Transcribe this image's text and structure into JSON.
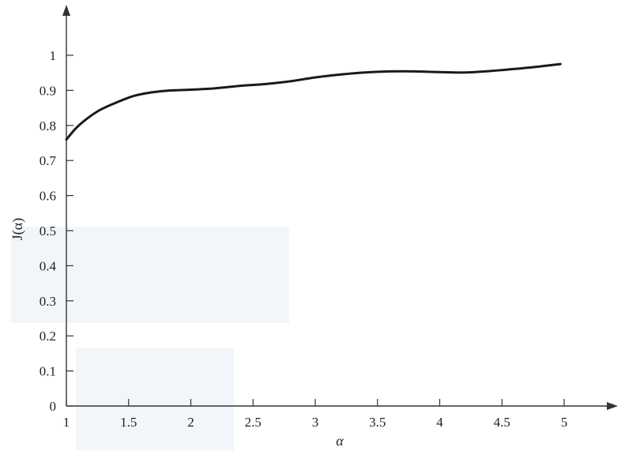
{
  "chart_data": {
    "type": "line",
    "title": "",
    "xlabel": "α",
    "ylabel": "J(α)",
    "xlim": [
      1,
      5.4
    ],
    "ylim": [
      0,
      1.13
    ],
    "x_ticks": [
      1,
      1.5,
      2,
      2.5,
      3,
      3.5,
      4,
      4.5,
      5
    ],
    "x_tick_labels": [
      "1",
      "1.5",
      "2",
      "2.5",
      "3",
      "3.5",
      "4",
      "4.5",
      "5"
    ],
    "y_ticks": [
      0,
      0.1,
      0.2,
      0.3,
      0.4,
      0.5,
      0.6,
      0.7,
      0.8,
      0.9,
      1
    ],
    "y_tick_labels": [
      "0",
      "0.1",
      "0.2",
      "0.3",
      "0.4",
      "0.5",
      "0.6",
      "0.7",
      "0.8",
      "0.9",
      "1"
    ],
    "grid": false,
    "legend": "none",
    "series": [
      {
        "color": "#1a1a1a",
        "x": [
          1,
          1.1,
          1.25,
          1.4,
          1.55,
          1.7,
          1.85,
          2,
          2.2,
          2.4,
          2.6,
          2.8,
          3,
          3.2,
          3.4,
          3.6,
          3.8,
          4,
          4.2,
          4.4,
          4.6,
          4.8,
          4.97
        ],
        "y": [
          0.76,
          0.8,
          0.84,
          0.865,
          0.885,
          0.895,
          0.9,
          0.902,
          0.906,
          0.913,
          0.918,
          0.926,
          0.937,
          0.945,
          0.951,
          0.954,
          0.954,
          0.952,
          0.951,
          0.955,
          0.961,
          0.968,
          0.975
        ]
      }
    ]
  }
}
